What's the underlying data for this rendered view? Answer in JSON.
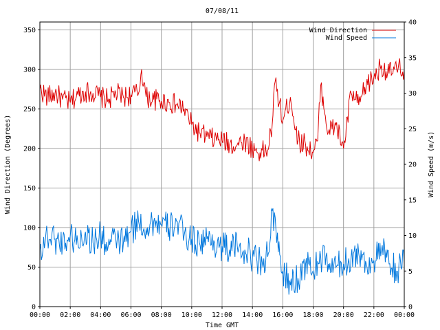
{
  "chart_data": {
    "type": "line",
    "title": "07/08/11",
    "xlabel": "Time GMT",
    "ylabel_left": "Wind Direction (Degrees)",
    "ylabel_right": "Wind Speed (m/s)",
    "x_ticks": [
      "00:00",
      "02:00",
      "04:00",
      "06:00",
      "08:00",
      "10:00",
      "12:00",
      "14:00",
      "16:00",
      "18:00",
      "20:00",
      "22:00",
      "00:00"
    ],
    "y_left_ticks": [
      "0",
      "50",
      "100",
      "150",
      "200",
      "250",
      "300",
      "350"
    ],
    "y_right_ticks": [
      "0",
      "5",
      "10",
      "15",
      "20",
      "25",
      "30",
      "35",
      "40"
    ],
    "y_left_range": [
      0,
      360
    ],
    "y_right_range": [
      0,
      40
    ],
    "x_range_hours": [
      0,
      24
    ],
    "grid": true,
    "legend_position": "top-right",
    "series": [
      {
        "name": "Wind Direction",
        "axis": "left",
        "color": "#dd0000",
        "x_hours": [
          0,
          0.5,
          1,
          1.5,
          2,
          2.5,
          3,
          3.5,
          4,
          4.5,
          5,
          5.5,
          6,
          6.5,
          6.7,
          7,
          7.5,
          8,
          8.5,
          9,
          9.5,
          10,
          10.5,
          11,
          11.5,
          12,
          12.5,
          13,
          13.5,
          14,
          14.5,
          15,
          15.3,
          15.5,
          16,
          16.5,
          17,
          17.5,
          18,
          18.3,
          18.5,
          19,
          19.5,
          20,
          20.5,
          21,
          21.5,
          22,
          22.5,
          23,
          23.5,
          24
        ],
        "values": [
          275,
          265,
          270,
          262,
          258,
          268,
          272,
          270,
          265,
          262,
          270,
          265,
          268,
          270,
          300,
          265,
          262,
          260,
          258,
          255,
          250,
          230,
          220,
          215,
          212,
          210,
          205,
          205,
          210,
          200,
          195,
          198,
          230,
          285,
          235,
          265,
          210,
          205,
          195,
          210,
          280,
          220,
          230,
          200,
          270,
          255,
          280,
          290,
          305,
          295,
          300,
          300
        ]
      },
      {
        "name": "Wind Speed",
        "axis": "right",
        "color": "#0077dd",
        "x_hours": [
          0,
          0.5,
          1,
          1.5,
          2,
          2.5,
          3,
          3.5,
          4,
          4.5,
          5,
          5.5,
          6,
          6.5,
          7,
          7.5,
          8,
          8.5,
          9,
          9.5,
          10,
          10.5,
          11,
          11.5,
          12,
          12.5,
          13,
          13.5,
          14,
          14.5,
          15,
          15.3,
          15.6,
          16,
          16.5,
          17,
          17.5,
          18,
          18.5,
          19,
          19.5,
          20,
          20.5,
          21,
          21.5,
          22,
          22.5,
          23,
          23.5,
          24
        ],
        "values": [
          8,
          10,
          9.5,
          9,
          10,
          9,
          10.5,
          9,
          10,
          8.5,
          9.5,
          9,
          10.5,
          12,
          11,
          12,
          11.5,
          11,
          12,
          10,
          9.5,
          9,
          9.5,
          9,
          8.5,
          8,
          8.5,
          8,
          7,
          6.5,
          7,
          13.5,
          9,
          5,
          3,
          4,
          6,
          5,
          7,
          6,
          5.5,
          6,
          7,
          7.5,
          6,
          6.5,
          8,
          6,
          5,
          6
        ]
      }
    ]
  }
}
